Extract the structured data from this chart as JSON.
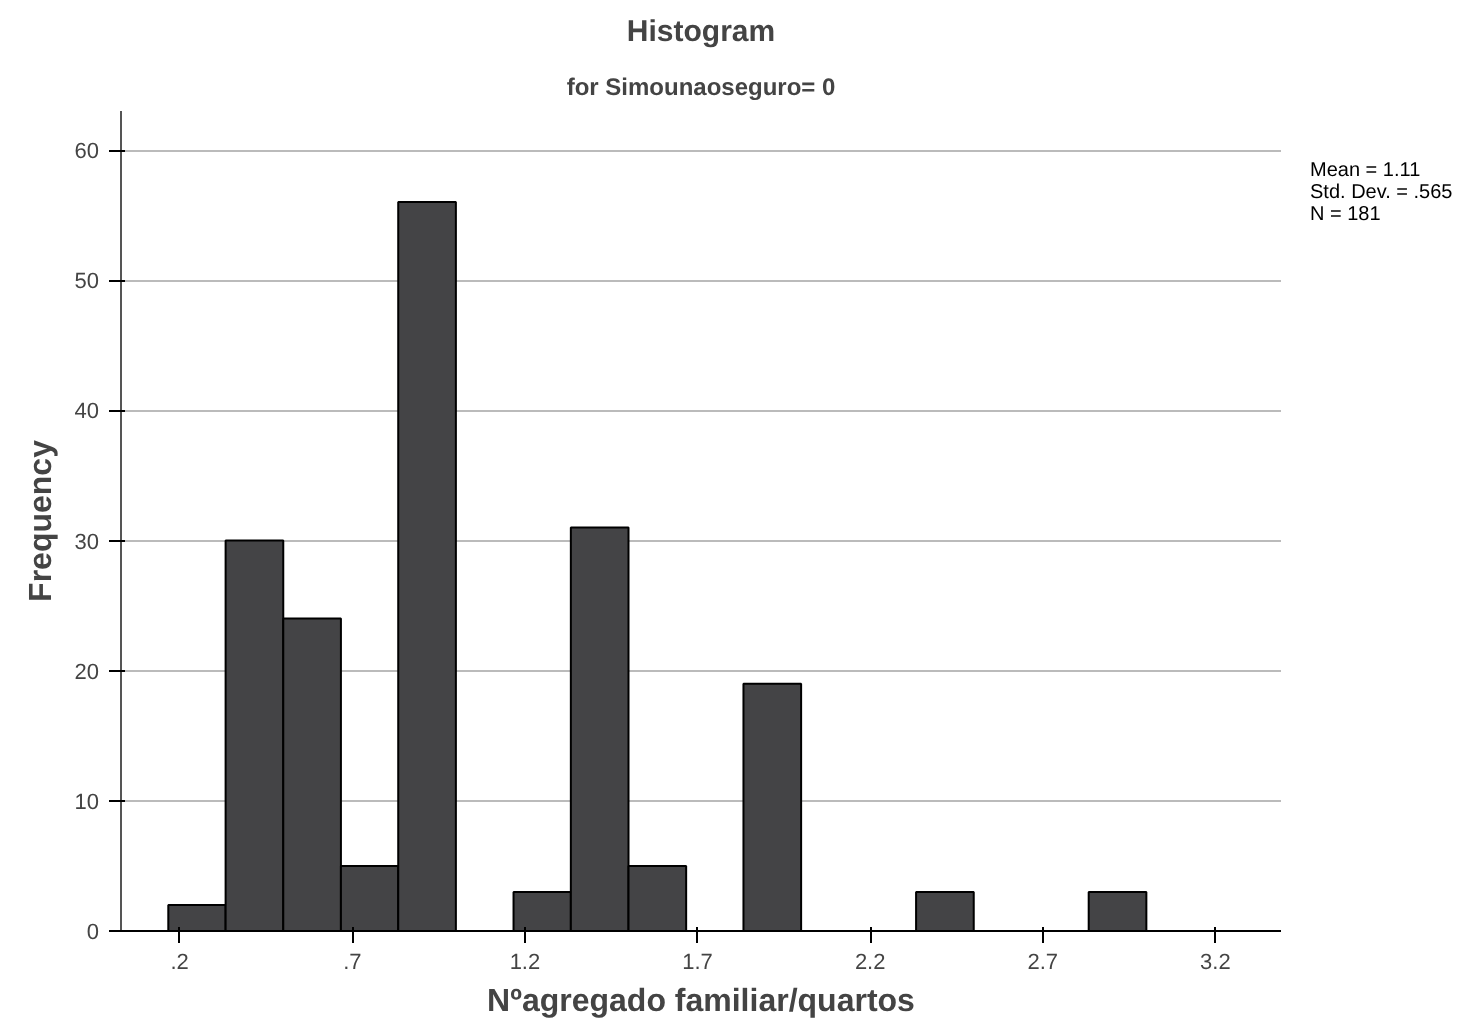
{
  "chart_data": {
    "type": "histogram",
    "title": "Histogram",
    "subtitle": "for Simounaoseguro= 0",
    "xlabel": "Nºagregado familiar/quartos",
    "ylabel": "Frequency",
    "bins": [
      0.167,
      0.333,
      0.5,
      0.667,
      0.833,
      1.0,
      1.167,
      1.333,
      1.5,
      1.667,
      1.833,
      2.0,
      2.167,
      2.333,
      2.5,
      2.667,
      2.833,
      3.0
    ],
    "values": [
      2,
      30,
      24,
      5,
      56,
      0,
      3,
      31,
      5,
      0,
      19,
      0,
      0,
      3,
      0,
      0,
      3
    ],
    "color": "#444446",
    "xlim": [
      0.03,
      3.39
    ],
    "ylim": [
      0,
      63
    ],
    "xticks": [
      {
        "value": 0.2,
        "label": ".2"
      },
      {
        "value": 0.7,
        "label": ".7"
      },
      1.2,
      1.7,
      2.2,
      2.7,
      3.2
    ],
    "yticks": [
      0,
      10,
      20,
      30,
      40,
      50,
      60
    ],
    "grid": "y",
    "annotations": [
      "Mean = 1.11",
      "Std. Dev. = .565",
      "N = 181"
    ]
  }
}
